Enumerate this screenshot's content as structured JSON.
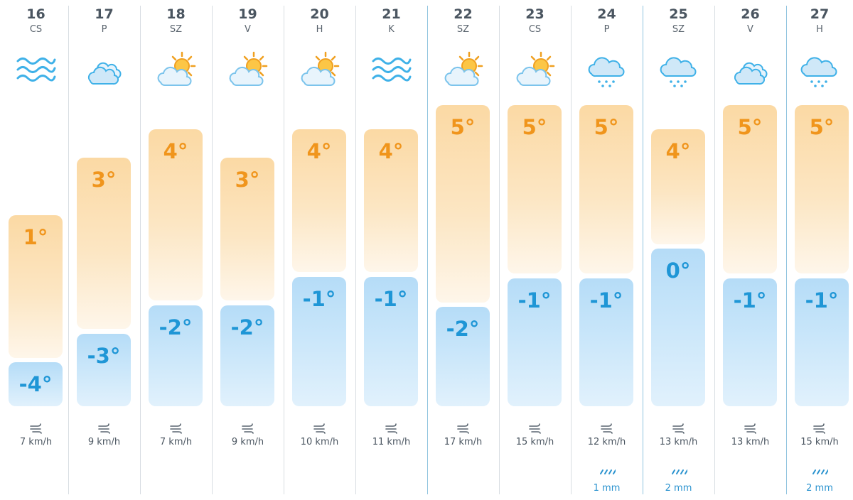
{
  "days": [
    {
      "date": "16",
      "dow": "CS",
      "icon": "wind-icon",
      "high": "1°",
      "low": "-4°",
      "wind": "7 km/h",
      "precip": ""
    },
    {
      "date": "17",
      "dow": "P",
      "icon": "cloudy-icon",
      "high": "3°",
      "low": "-3°",
      "wind": "9 km/h",
      "precip": ""
    },
    {
      "date": "18",
      "dow": "SZ",
      "icon": "partly-sunny-icon",
      "high": "4°",
      "low": "-2°",
      "wind": "7 km/h",
      "precip": ""
    },
    {
      "date": "19",
      "dow": "V",
      "icon": "partly-sunny-icon",
      "high": "3°",
      "low": "-2°",
      "wind": "9 km/h",
      "precip": ""
    },
    {
      "date": "20",
      "dow": "H",
      "icon": "partly-sunny-icon",
      "high": "4°",
      "low": "-1°",
      "wind": "10 km/h",
      "precip": ""
    },
    {
      "date": "21",
      "dow": "K",
      "icon": "wind-icon",
      "high": "4°",
      "low": "-1°",
      "wind": "11 km/h",
      "precip": ""
    },
    {
      "date": "22",
      "dow": "SZ",
      "icon": "partly-sunny-icon",
      "high": "5°",
      "low": "-2°",
      "wind": "17 km/h",
      "precip": ""
    },
    {
      "date": "23",
      "dow": "CS",
      "icon": "partly-sunny-icon",
      "high": "5°",
      "low": "-1°",
      "wind": "15 km/h",
      "precip": ""
    },
    {
      "date": "24",
      "dow": "P",
      "icon": "rain-cloud-icon",
      "high": "5°",
      "low": "-1°",
      "wind": "12 km/h",
      "precip": "1 mm"
    },
    {
      "date": "25",
      "dow": "SZ",
      "icon": "rain-cloud-icon",
      "high": "4°",
      "low": "0°",
      "wind": "13 km/h",
      "precip": "2 mm"
    },
    {
      "date": "26",
      "dow": "V",
      "icon": "cloudy-icon",
      "high": "5°",
      "low": "-1°",
      "wind": "13 km/h",
      "precip": ""
    },
    {
      "date": "27",
      "dow": "H",
      "icon": "rain-cloud-icon",
      "high": "5°",
      "low": "-1°",
      "wind": "15 km/h",
      "precip": "2 mm"
    }
  ],
  "colors": {
    "high_text": "#f0951c",
    "low_text": "#1f96d6",
    "high_bar": "#fbd9a4",
    "low_bar": "#b5dcf7",
    "precip_text": "#2b93cf"
  }
}
